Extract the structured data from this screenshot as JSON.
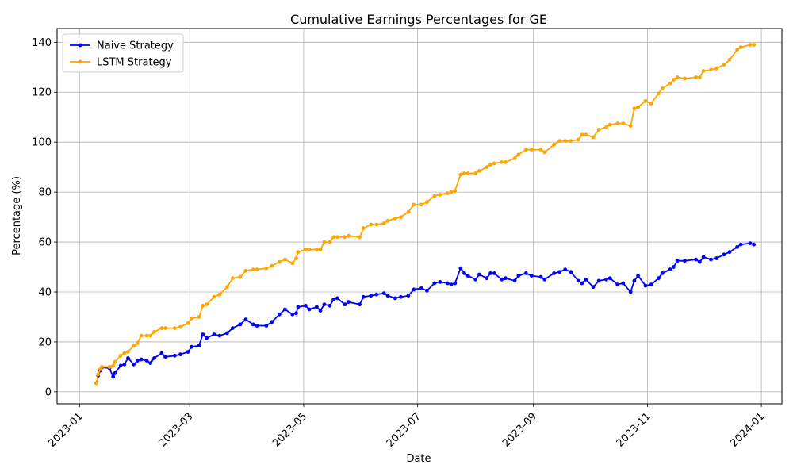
{
  "chart_data": {
    "type": "line",
    "title": "Cumulative Earnings Percentages for GE",
    "xlabel": "Date",
    "ylabel": "Percentage (%)",
    "x_ticks": [
      "2023-01",
      "2023-03",
      "2023-05",
      "2023-07",
      "2023-09",
      "2023-11",
      "2024-01"
    ],
    "y_ticks": [
      0,
      20,
      40,
      60,
      80,
      100,
      120,
      140
    ],
    "xlim": [
      "2022-12-20",
      "2024-01-12"
    ],
    "ylim": [
      -4.8,
      145.5
    ],
    "grid": true,
    "legend_position": "top-left",
    "series": [
      {
        "name": "Naive Strategy",
        "color": "#0000ff",
        "points": [
          [
            "2023-01-10",
            3.5
          ],
          [
            "2023-01-11",
            6.5
          ],
          [
            "2023-01-12",
            8.5
          ],
          [
            "2023-01-13",
            9.8
          ],
          [
            "2023-01-17",
            9.5
          ],
          [
            "2023-01-19",
            6.0
          ],
          [
            "2023-01-20",
            7.5
          ],
          [
            "2023-01-23",
            10.5
          ],
          [
            "2023-01-25",
            11.0
          ],
          [
            "2023-01-27",
            13.5
          ],
          [
            "2023-01-30",
            11.0
          ],
          [
            "2023-02-01",
            12.5
          ],
          [
            "2023-02-03",
            13.0
          ],
          [
            "2023-02-06",
            12.5
          ],
          [
            "2023-02-08",
            11.5
          ],
          [
            "2023-02-10",
            13.5
          ],
          [
            "2023-02-14",
            15.5
          ],
          [
            "2023-02-16",
            14.0
          ],
          [
            "2023-02-21",
            14.5
          ],
          [
            "2023-02-24",
            15.0
          ],
          [
            "2023-02-28",
            16.0
          ],
          [
            "2023-03-02",
            18.0
          ],
          [
            "2023-03-06",
            18.5
          ],
          [
            "2023-03-08",
            23.0
          ],
          [
            "2023-03-10",
            21.5
          ],
          [
            "2023-03-14",
            23.0
          ],
          [
            "2023-03-17",
            22.5
          ],
          [
            "2023-03-21",
            23.5
          ],
          [
            "2023-03-24",
            25.5
          ],
          [
            "2023-03-28",
            27.0
          ],
          [
            "2023-03-31",
            29.0
          ],
          [
            "2023-04-04",
            27.0
          ],
          [
            "2023-04-06",
            26.5
          ],
          [
            "2023-04-11",
            26.5
          ],
          [
            "2023-04-14",
            28.0
          ],
          [
            "2023-04-18",
            31.0
          ],
          [
            "2023-04-21",
            33.0
          ],
          [
            "2023-04-25",
            31.0
          ],
          [
            "2023-04-27",
            31.5
          ],
          [
            "2023-04-28",
            34.0
          ],
          [
            "2023-05-02",
            34.5
          ],
          [
            "2023-05-04",
            33.0
          ],
          [
            "2023-05-08",
            34.0
          ],
          [
            "2023-05-10",
            32.5
          ],
          [
            "2023-05-12",
            35.0
          ],
          [
            "2023-05-15",
            34.5
          ],
          [
            "2023-05-17",
            37.0
          ],
          [
            "2023-05-19",
            37.5
          ],
          [
            "2023-05-23",
            35.0
          ],
          [
            "2023-05-25",
            36.0
          ],
          [
            "2023-05-31",
            35.0
          ],
          [
            "2023-06-02",
            38.0
          ],
          [
            "2023-06-06",
            38.5
          ],
          [
            "2023-06-09",
            39.0
          ],
          [
            "2023-06-13",
            39.5
          ],
          [
            "2023-06-15",
            38.5
          ],
          [
            "2023-06-19",
            37.5
          ],
          [
            "2023-06-22",
            38.0
          ],
          [
            "2023-06-26",
            38.5
          ],
          [
            "2023-06-29",
            41.0
          ],
          [
            "2023-07-03",
            41.5
          ],
          [
            "2023-07-06",
            40.5
          ],
          [
            "2023-07-10",
            43.5
          ],
          [
            "2023-07-13",
            44.0
          ],
          [
            "2023-07-17",
            43.5
          ],
          [
            "2023-07-19",
            43.0
          ],
          [
            "2023-07-21",
            43.5
          ],
          [
            "2023-07-24",
            49.5
          ],
          [
            "2023-07-26",
            47.5
          ],
          [
            "2023-07-28",
            46.5
          ],
          [
            "2023-08-01",
            45.0
          ],
          [
            "2023-08-03",
            47.0
          ],
          [
            "2023-08-07",
            45.5
          ],
          [
            "2023-08-09",
            47.5
          ],
          [
            "2023-08-11",
            47.5
          ],
          [
            "2023-08-15",
            45.0
          ],
          [
            "2023-08-17",
            45.5
          ],
          [
            "2023-08-22",
            44.5
          ],
          [
            "2023-08-24",
            46.5
          ],
          [
            "2023-08-28",
            47.5
          ],
          [
            "2023-08-31",
            46.5
          ],
          [
            "2023-09-05",
            46.0
          ],
          [
            "2023-09-07",
            45.0
          ],
          [
            "2023-09-12",
            47.5
          ],
          [
            "2023-09-15",
            48.0
          ],
          [
            "2023-09-18",
            49.0
          ],
          [
            "2023-09-21",
            48.0
          ],
          [
            "2023-09-25",
            44.5
          ],
          [
            "2023-09-27",
            43.5
          ],
          [
            "2023-09-29",
            45.0
          ],
          [
            "2023-10-03",
            42.0
          ],
          [
            "2023-10-06",
            44.5
          ],
          [
            "2023-10-10",
            45.0
          ],
          [
            "2023-10-12",
            45.5
          ],
          [
            "2023-10-16",
            43.0
          ],
          [
            "2023-10-19",
            43.5
          ],
          [
            "2023-10-23",
            40.0
          ],
          [
            "2023-10-25",
            44.5
          ],
          [
            "2023-10-27",
            46.5
          ],
          [
            "2023-10-31",
            42.5
          ],
          [
            "2023-11-03",
            43.0
          ],
          [
            "2023-11-07",
            45.5
          ],
          [
            "2023-11-09",
            47.5
          ],
          [
            "2023-11-13",
            49.0
          ],
          [
            "2023-11-15",
            50.0
          ],
          [
            "2023-11-17",
            52.5
          ],
          [
            "2023-11-21",
            52.5
          ],
          [
            "2023-11-27",
            53.0
          ],
          [
            "2023-11-29",
            52.0
          ],
          [
            "2023-12-01",
            54.0
          ],
          [
            "2023-12-05",
            53.0
          ],
          [
            "2023-12-08",
            53.5
          ],
          [
            "2023-12-12",
            55.0
          ],
          [
            "2023-12-15",
            56.0
          ],
          [
            "2023-12-19",
            58.0
          ],
          [
            "2023-12-21",
            59.0
          ],
          [
            "2023-12-26",
            59.5
          ],
          [
            "2023-12-28",
            59.0
          ]
        ]
      },
      {
        "name": "LSTM Strategy",
        "color": "#ffa500",
        "points": [
          [
            "2023-01-10",
            3.5
          ],
          [
            "2023-01-11",
            7.0
          ],
          [
            "2023-01-12",
            9.0
          ],
          [
            "2023-01-13",
            10.0
          ],
          [
            "2023-01-17",
            10.0
          ],
          [
            "2023-01-19",
            10.5
          ],
          [
            "2023-01-20",
            12.0
          ],
          [
            "2023-01-23",
            14.5
          ],
          [
            "2023-01-25",
            15.5
          ],
          [
            "2023-01-27",
            16.0
          ],
          [
            "2023-01-30",
            18.5
          ],
          [
            "2023-02-01",
            19.5
          ],
          [
            "2023-02-03",
            22.5
          ],
          [
            "2023-02-06",
            22.5
          ],
          [
            "2023-02-08",
            22.5
          ],
          [
            "2023-02-10",
            24.0
          ],
          [
            "2023-02-14",
            25.5
          ],
          [
            "2023-02-16",
            25.5
          ],
          [
            "2023-02-21",
            25.5
          ],
          [
            "2023-02-24",
            26.0
          ],
          [
            "2023-02-28",
            27.5
          ],
          [
            "2023-03-02",
            29.5
          ],
          [
            "2023-03-06",
            30.0
          ],
          [
            "2023-03-08",
            34.5
          ],
          [
            "2023-03-10",
            35.0
          ],
          [
            "2023-03-14",
            38.0
          ],
          [
            "2023-03-17",
            39.0
          ],
          [
            "2023-03-21",
            42.0
          ],
          [
            "2023-03-24",
            45.5
          ],
          [
            "2023-03-28",
            46.0
          ],
          [
            "2023-03-31",
            48.5
          ],
          [
            "2023-04-04",
            49.0
          ],
          [
            "2023-04-06",
            49.0
          ],
          [
            "2023-04-11",
            49.5
          ],
          [
            "2023-04-14",
            50.5
          ],
          [
            "2023-04-18",
            52.0
          ],
          [
            "2023-04-21",
            53.0
          ],
          [
            "2023-04-25",
            51.5
          ],
          [
            "2023-04-27",
            53.5
          ],
          [
            "2023-04-28",
            56.0
          ],
          [
            "2023-05-02",
            57.0
          ],
          [
            "2023-05-04",
            57.0
          ],
          [
            "2023-05-08",
            57.0
          ],
          [
            "2023-05-10",
            57.0
          ],
          [
            "2023-05-12",
            60.0
          ],
          [
            "2023-05-15",
            60.0
          ],
          [
            "2023-05-17",
            62.0
          ],
          [
            "2023-05-19",
            62.0
          ],
          [
            "2023-05-23",
            62.0
          ],
          [
            "2023-05-25",
            62.5
          ],
          [
            "2023-05-31",
            62.0
          ],
          [
            "2023-06-02",
            65.5
          ],
          [
            "2023-06-06",
            67.0
          ],
          [
            "2023-06-09",
            67.0
          ],
          [
            "2023-06-13",
            67.5
          ],
          [
            "2023-06-15",
            68.5
          ],
          [
            "2023-06-19",
            69.5
          ],
          [
            "2023-06-22",
            70.0
          ],
          [
            "2023-06-26",
            72.0
          ],
          [
            "2023-06-29",
            75.0
          ],
          [
            "2023-07-03",
            75.0
          ],
          [
            "2023-07-06",
            76.0
          ],
          [
            "2023-07-10",
            78.5
          ],
          [
            "2023-07-13",
            79.0
          ],
          [
            "2023-07-17",
            79.5
          ],
          [
            "2023-07-19",
            80.0
          ],
          [
            "2023-07-21",
            80.5
          ],
          [
            "2023-07-24",
            87.0
          ],
          [
            "2023-07-26",
            87.5
          ],
          [
            "2023-07-28",
            87.5
          ],
          [
            "2023-08-01",
            87.5
          ],
          [
            "2023-08-03",
            88.5
          ],
          [
            "2023-08-07",
            90.0
          ],
          [
            "2023-08-09",
            91.0
          ],
          [
            "2023-08-11",
            91.5
          ],
          [
            "2023-08-15",
            92.0
          ],
          [
            "2023-08-17",
            92.0
          ],
          [
            "2023-08-22",
            93.5
          ],
          [
            "2023-08-24",
            95.0
          ],
          [
            "2023-08-28",
            97.0
          ],
          [
            "2023-08-31",
            97.0
          ],
          [
            "2023-09-05",
            97.0
          ],
          [
            "2023-09-07",
            96.0
          ],
          [
            "2023-09-12",
            99.0
          ],
          [
            "2023-09-15",
            100.5
          ],
          [
            "2023-09-18",
            100.5
          ],
          [
            "2023-09-21",
            100.5
          ],
          [
            "2023-09-25",
            101.0
          ],
          [
            "2023-09-27",
            103.0
          ],
          [
            "2023-09-29",
            103.0
          ],
          [
            "2023-10-03",
            102.0
          ],
          [
            "2023-10-06",
            105.0
          ],
          [
            "2023-10-10",
            106.0
          ],
          [
            "2023-10-12",
            107.0
          ],
          [
            "2023-10-16",
            107.5
          ],
          [
            "2023-10-19",
            107.5
          ],
          [
            "2023-10-23",
            106.5
          ],
          [
            "2023-10-25",
            113.5
          ],
          [
            "2023-10-27",
            114.0
          ],
          [
            "2023-10-31",
            116.5
          ],
          [
            "2023-11-03",
            115.5
          ],
          [
            "2023-11-07",
            119.5
          ],
          [
            "2023-11-09",
            121.5
          ],
          [
            "2023-11-13",
            123.5
          ],
          [
            "2023-11-15",
            125.0
          ],
          [
            "2023-11-17",
            126.0
          ],
          [
            "2023-11-21",
            125.5
          ],
          [
            "2023-11-27",
            126.0
          ],
          [
            "2023-11-29",
            126.0
          ],
          [
            "2023-12-01",
            128.5
          ],
          [
            "2023-12-05",
            129.0
          ],
          [
            "2023-12-08",
            129.5
          ],
          [
            "2023-12-12",
            131.0
          ],
          [
            "2023-12-15",
            133.0
          ],
          [
            "2023-12-19",
            137.0
          ],
          [
            "2023-12-21",
            138.0
          ],
          [
            "2023-12-26",
            139.0
          ],
          [
            "2023-12-28",
            139.0
          ]
        ]
      }
    ]
  }
}
